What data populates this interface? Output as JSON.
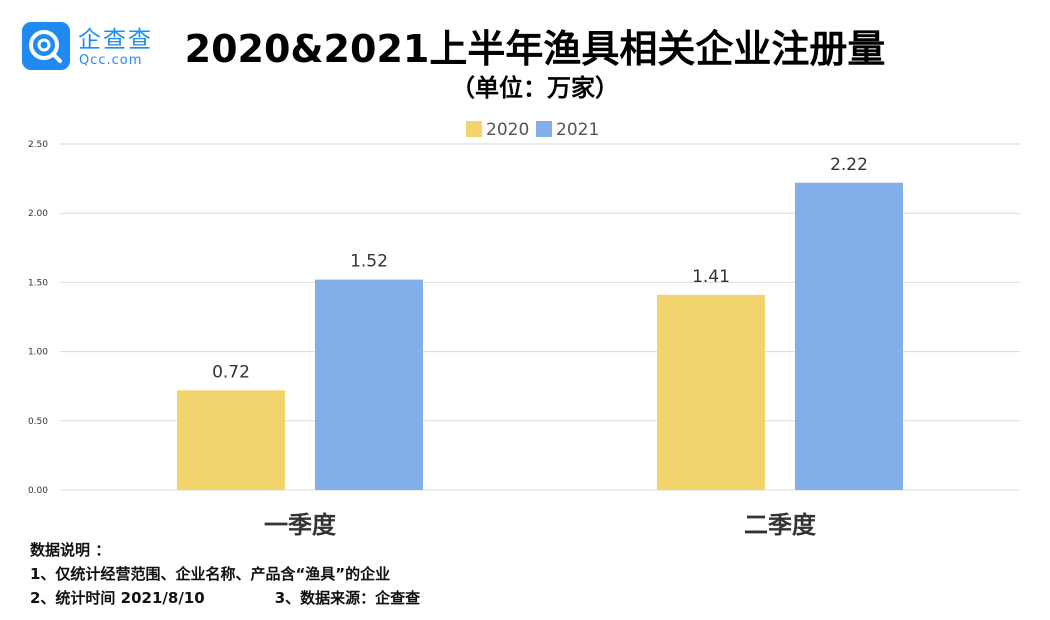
{
  "logo": {
    "name": "企查查",
    "domain": "Qcc.com",
    "icon": "qcc-logo-icon"
  },
  "chart_data": {
    "type": "bar",
    "title": "2020&2021上半年渔具相关企业注册量",
    "subtitle": "（单位：万家）",
    "categories": [
      "一季度",
      "二季度"
    ],
    "series": [
      {
        "name": "2020",
        "values": [
          0.72,
          1.41
        ],
        "color": "#f2d46e"
      },
      {
        "name": "2021",
        "values": [
          1.52,
          2.22
        ],
        "color": "#82aeea"
      }
    ],
    "data_labels": [
      [
        "0.72",
        "1.41"
      ],
      [
        "1.52",
        "2.22"
      ]
    ],
    "y_ticks": [
      "0.00",
      "0.50",
      "1.00",
      "1.50",
      "2.00",
      "2.50"
    ],
    "ylim": [
      0,
      2.5
    ],
    "xlabel": "",
    "ylabel": "",
    "grid": true,
    "legend": "top-center",
    "gridline_color": "#d9d9d9"
  },
  "notes": {
    "heading": "数据说明 ：",
    "line1": "1、仅统计经营范围、企业名称、产品含“渔具”的企业",
    "line2a": "2、统计时间 2021/8/10",
    "line2b": "3、数据来源：企查查"
  }
}
